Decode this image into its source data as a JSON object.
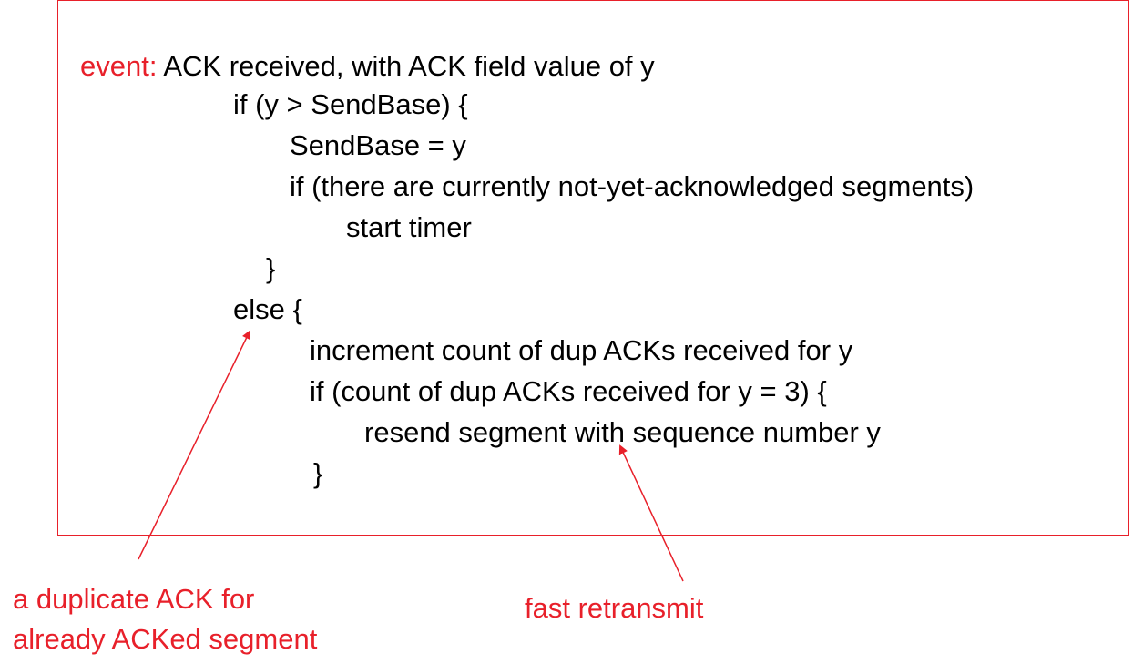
{
  "colors": {
    "accent": "#e8202a",
    "text": "#000000",
    "background": "#ffffff"
  },
  "code": {
    "event_keyword": "event:",
    "event_rest": " ACK received, with ACK field value of y",
    "lines": [
      "if (y > SendBase) {",
      "SendBase = y",
      "if (there are currently not-yet-acknowledged segments)",
      "start timer",
      "}",
      "else {",
      "increment count of dup ACKs received for y",
      "if (count of dup ACKs received for y = 3) {",
      "resend segment with sequence number y",
      "}"
    ]
  },
  "annotations": {
    "duplicate_ack": [
      "a duplicate ACK for",
      "already ACKed segment"
    ],
    "fast_retransmit": "fast retransmit"
  }
}
